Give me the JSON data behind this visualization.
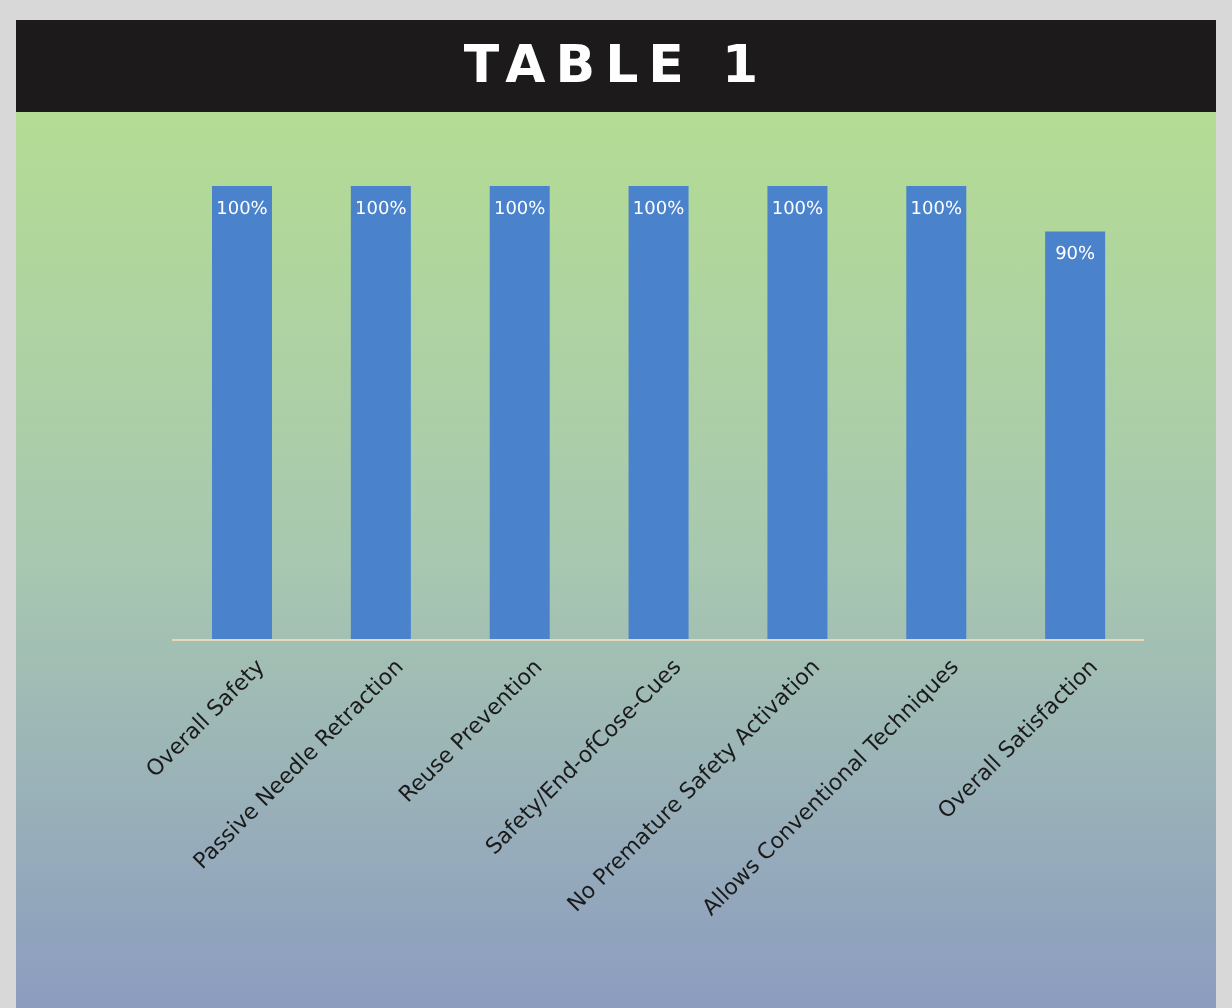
{
  "chart_data": {
    "type": "bar",
    "title": "TABLE 1",
    "categories": [
      "Overall Safety",
      "Passive Needle Retraction",
      "Reuse Prevention",
      "Safety/End-ofCose-Cues",
      "No Premature Safety Activation",
      "Allows Conventional Techniques",
      "Overall Satisfaction"
    ],
    "values": [
      100,
      100,
      100,
      100,
      100,
      100,
      90
    ],
    "value_labels": [
      "100%",
      "100%",
      "100%",
      "100%",
      "100%",
      "100%",
      "90%"
    ],
    "color": "#4a82cc",
    "grid": false,
    "legend": false
  }
}
